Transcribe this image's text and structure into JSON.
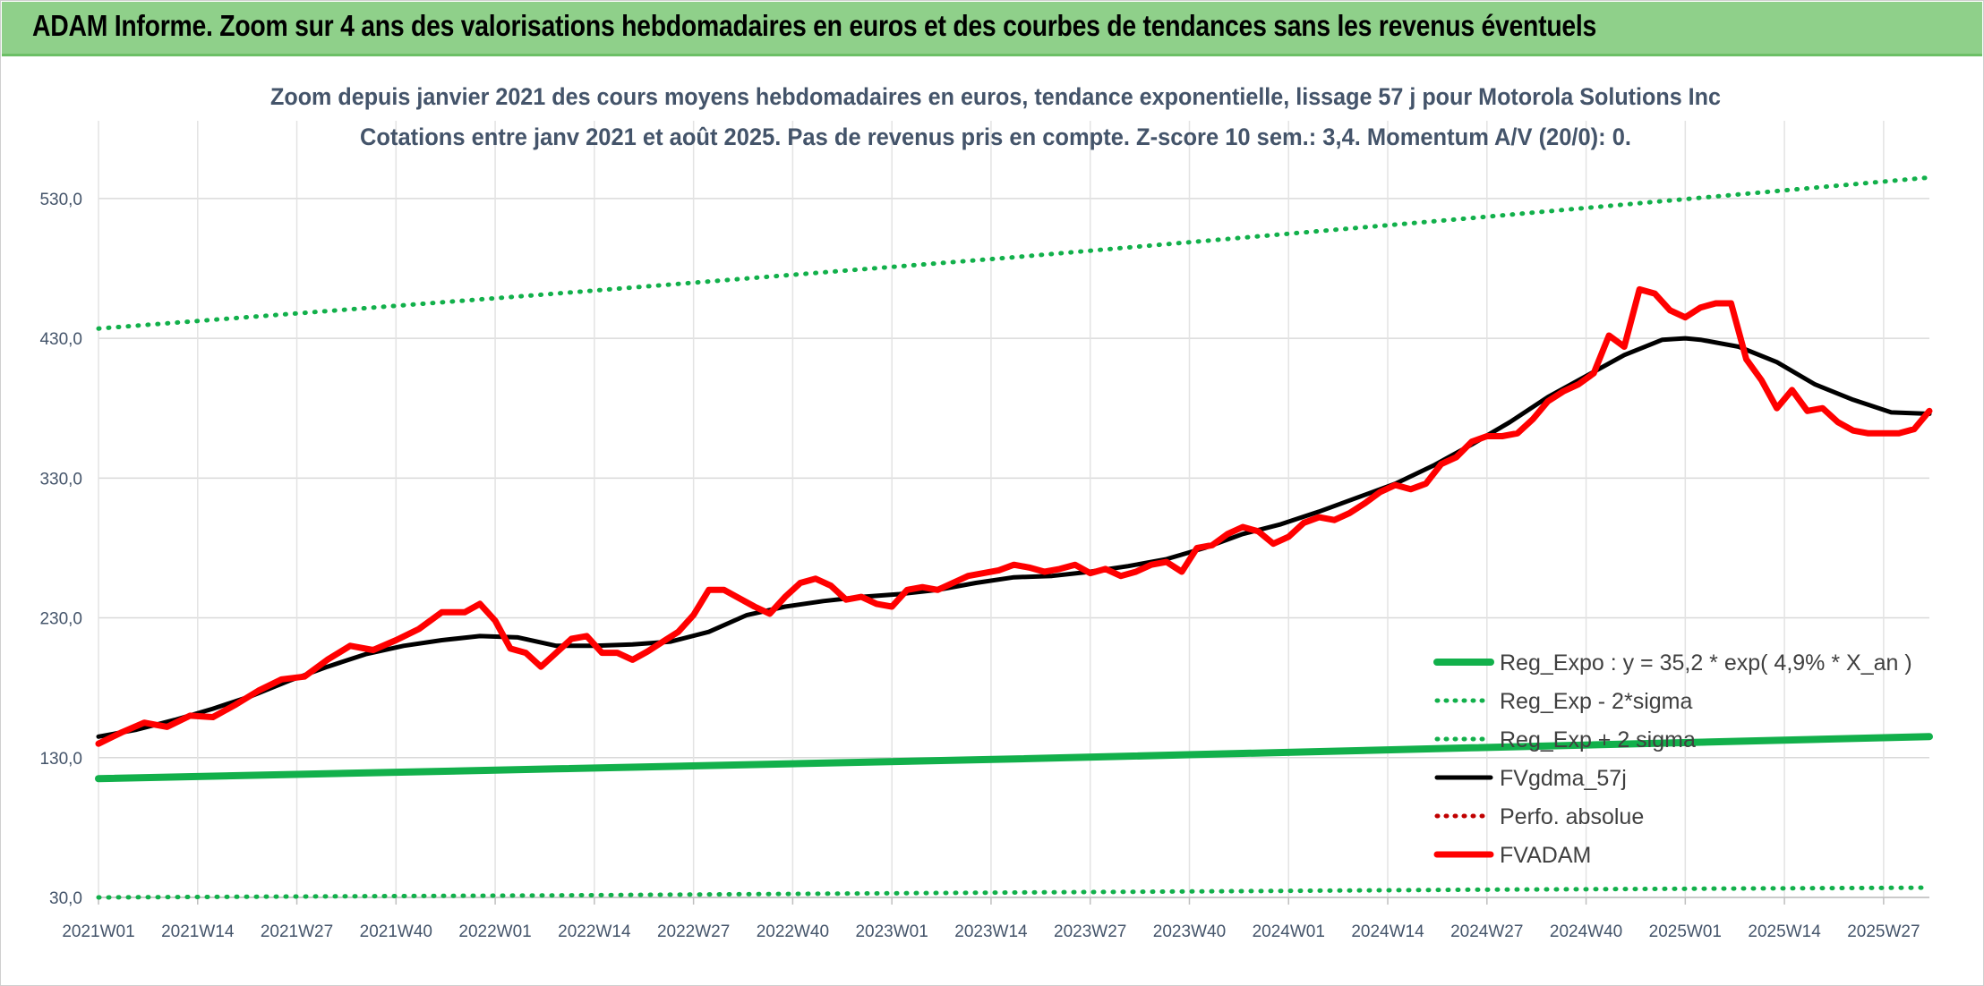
{
  "header": {
    "title": "ADAM Informe. Zoom sur 4 ans des valorisations hebdomadaires en euros et des courbes de tendances sans les revenus éventuels"
  },
  "colors": {
    "header_bg": "#8fd08a",
    "reg_expo": "#12b04b",
    "fvgdma": "#000000",
    "fvadam": "#ff0000",
    "perfo": "#c00000",
    "text": "#44546a"
  },
  "chart_data": {
    "type": "line",
    "title_lines": [
      "Zoom depuis janvier 2021 des cours moyens hebdomadaires en euros, tendance exponentielle, lissage 57 j pour Motorola Solutions Inc",
      "Cotations entre janv 2021 et août 2025. Pas de revenus pris en compte. Z-score 10 sem.: 3,4. Momentum A/V (20/0): 0."
    ],
    "ylim": [
      30,
      560
    ],
    "y_ticks": [
      "30,0",
      "130,0",
      "230,0",
      "330,0",
      "430,0",
      "530,0"
    ],
    "y_tick_values": [
      30,
      130,
      230,
      330,
      430,
      530
    ],
    "x_range": [
      0,
      240
    ],
    "x_ticks": [
      "2021W01",
      "2021W14",
      "2021W27",
      "2021W40",
      "2022W01",
      "2022W14",
      "2022W27",
      "2022W40",
      "2023W01",
      "2023W14",
      "2023W27",
      "2023W40",
      "2024W01",
      "2024W14",
      "2024W27",
      "2024W40",
      "2025W01",
      "2025W14",
      "2025W27"
    ],
    "x_tick_positions": [
      0,
      13,
      26,
      39,
      52,
      65,
      78,
      91,
      104,
      117,
      130,
      143,
      156,
      169,
      182,
      195,
      208,
      221,
      234
    ],
    "grid": true,
    "legend_position": "bottom-right",
    "series": [
      {
        "name": "Reg_Expo : y = 35,2 * exp( 4,9% *  X_an )",
        "style": "solid-thick",
        "color": "#12b04b",
        "x": [
          0,
          60,
          120,
          180,
          240
        ],
        "values": [
          115,
          122,
          129,
          137,
          145
        ]
      },
      {
        "name": "Reg_Exp - 2*sigma",
        "style": "dotted",
        "color": "#12b04b",
        "x": [
          0,
          60,
          120,
          180,
          240
        ],
        "values": [
          30,
          31.5,
          33.5,
          35.5,
          37
        ]
      },
      {
        "name": "Reg_Exp + 2 sigma",
        "style": "dotted",
        "color": "#12b04b",
        "x": [
          0,
          60,
          120,
          180,
          240
        ],
        "values": [
          437,
          462,
          488,
          516,
          545
        ]
      },
      {
        "name": "FVgdma_57j",
        "style": "solid",
        "color": "#000000",
        "x": [
          0,
          5,
          10,
          15,
          20,
          25,
          30,
          35,
          40,
          45,
          50,
          55,
          60,
          65,
          70,
          75,
          80,
          85,
          90,
          95,
          100,
          105,
          110,
          115,
          120,
          125,
          130,
          135,
          140,
          145,
          150,
          155,
          160,
          165,
          170,
          175,
          180,
          185,
          190,
          195,
          200,
          205,
          208,
          210,
          215,
          220,
          225,
          230,
          235,
          240
        ],
        "values": [
          145,
          150,
          157,
          165,
          174,
          185,
          195,
          204,
          210,
          214,
          217,
          216,
          210,
          210,
          211,
          213,
          220,
          232,
          238,
          242,
          245,
          247,
          250,
          255,
          259,
          260,
          263,
          267,
          272,
          280,
          290,
          297,
          306,
          316,
          326,
          339,
          354,
          370,
          388,
          403,
          418,
          429,
          430,
          429,
          424,
          413,
          397,
          386,
          377,
          376
        ]
      },
      {
        "name": "Perfo. absolue",
        "style": "dotted",
        "color": "#c00000",
        "x": [],
        "values": []
      },
      {
        "name": "FVADAM",
        "style": "solid-thick",
        "color": "#ff0000",
        "x": [
          0,
          3,
          6,
          9,
          12,
          15,
          18,
          21,
          24,
          27,
          30,
          33,
          36,
          39,
          42,
          45,
          48,
          50,
          52,
          54,
          56,
          58,
          60,
          62,
          64,
          66,
          68,
          70,
          72,
          74,
          76,
          78,
          80,
          82,
          84,
          86,
          88,
          90,
          92,
          94,
          96,
          98,
          100,
          102,
          104,
          106,
          108,
          110,
          112,
          114,
          116,
          118,
          120,
          122,
          124,
          126,
          128,
          130,
          132,
          134,
          136,
          138,
          140,
          142,
          144,
          146,
          148,
          150,
          152,
          154,
          156,
          158,
          160,
          162,
          164,
          166,
          168,
          170,
          172,
          174,
          176,
          178,
          180,
          182,
          184,
          186,
          188,
          190,
          192,
          194,
          196,
          198,
          200,
          202,
          204,
          206,
          208,
          210,
          212,
          214,
          216,
          218,
          220,
          222,
          224,
          226,
          228,
          230,
          232,
          234,
          236,
          238,
          240
        ],
        "values": [
          140,
          148,
          155,
          152,
          160,
          159,
          168,
          178,
          186,
          188,
          200,
          210,
          207,
          214,
          222,
          234,
          234,
          240,
          228,
          208,
          205,
          195,
          205,
          215,
          217,
          205,
          205,
          200,
          206,
          213,
          220,
          232,
          250,
          250,
          244,
          238,
          233,
          245,
          255,
          258,
          253,
          243,
          245,
          240,
          238,
          250,
          252,
          250,
          255,
          260,
          262,
          264,
          268,
          266,
          263,
          265,
          268,
          262,
          265,
          260,
          263,
          268,
          270,
          263,
          280,
          282,
          290,
          295,
          292,
          283,
          288,
          298,
          302,
          300,
          305,
          312,
          320,
          325,
          322,
          326,
          340,
          345,
          356,
          360,
          360,
          362,
          372,
          385,
          392,
          397,
          405,
          432,
          424,
          465,
          462,
          450,
          445,
          452,
          455,
          455,
          415,
          400,
          380,
          393,
          378,
          380,
          370,
          364,
          362,
          362,
          362,
          365,
          378
        ]
      }
    ]
  }
}
